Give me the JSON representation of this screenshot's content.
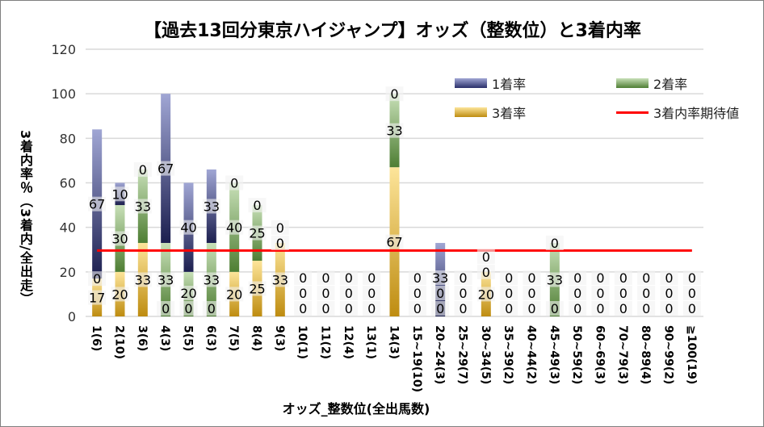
{
  "chart_data": {
    "type": "bar",
    "stacked": true,
    "title": "【過去13回分東京ハイジャンプ】オッズ（整数位）と3着内率",
    "xlabel": "オッズ_整数位(全出馬数)",
    "ylabel": "3着内率％（3着内/全出走）",
    "ylim": [
      0,
      120
    ],
    "yticks": [
      0,
      20,
      40,
      60,
      80,
      100,
      120
    ],
    "grid": true,
    "legend_position": "top-right",
    "categories": [
      "1(6)",
      "2(10)",
      "3(6)",
      "4(3)",
      "5(5)",
      "6(3)",
      "7(5)",
      "8(4)",
      "9(3)",
      "10(1)",
      "11(2)",
      "12(4)",
      "13(1)",
      "14(3)",
      "15~19(10)",
      "20~24(3)",
      "25~29(7)",
      "30~34(5)",
      "35~39(2)",
      "40~44(2)",
      "45~49(3)",
      "50~59(2)",
      "60~69(3)",
      "70~79(3)",
      "80~89(4)",
      "90~99(2)",
      "≧100(19)"
    ],
    "series": [
      {
        "name": "3着率",
        "color": "#c8961a",
        "values": [
          17,
          20,
          33,
          0,
          0,
          0,
          20,
          25,
          33,
          0,
          0,
          0,
          0,
          67,
          0,
          0,
          0,
          20,
          0,
          0,
          0,
          0,
          0,
          0,
          0,
          0,
          0
        ]
      },
      {
        "name": "2着率",
        "color": "#5a8a3a",
        "values": [
          0,
          30,
          33,
          33,
          20,
          33,
          40,
          25,
          0,
          0,
          0,
          0,
          0,
          33,
          0,
          0,
          0,
          0,
          0,
          0,
          33,
          0,
          0,
          0,
          0,
          0,
          0
        ]
      },
      {
        "name": "1着率",
        "color": "#3a428a",
        "values": [
          67,
          10,
          0,
          67,
          40,
          33,
          0,
          0,
          0,
          0,
          0,
          0,
          0,
          0,
          0,
          33,
          0,
          0,
          0,
          0,
          0,
          0,
          0,
          0,
          0,
          0,
          0
        ]
      }
    ],
    "reference_line": {
      "name": "3着内率期待値",
      "value": 29.6,
      "color": "#ff0000"
    }
  }
}
